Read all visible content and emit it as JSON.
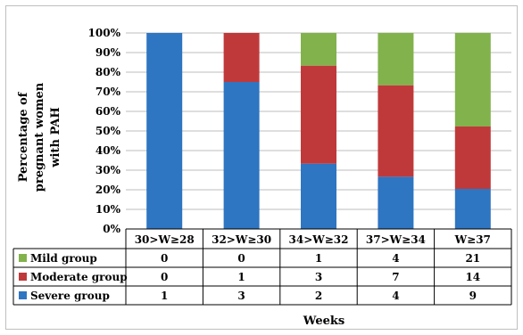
{
  "chart_data": {
    "type": "stacked-bar-100",
    "title": "",
    "ylabel": "Percentage of pregnant women with PAH",
    "xlabel": "Weeks",
    "ylim": [
      0,
      100
    ],
    "yticks": [
      "0%",
      "10%",
      "20%",
      "30%",
      "40%",
      "50%",
      "60%",
      "70%",
      "80%",
      "90%",
      "100%"
    ],
    "categories": [
      "30>W≥28",
      "32>W≥30",
      "34>W≥32",
      "37>W≥34",
      "W≥37"
    ],
    "series": [
      {
        "name": "Severe group",
        "color": "#2e75c2",
        "values": [
          1,
          3,
          2,
          4,
          9
        ]
      },
      {
        "name": "Moderate group",
        "color": "#c0393a",
        "values": [
          0,
          1,
          3,
          7,
          14
        ]
      },
      {
        "name": "Mild group",
        "color": "#82b24c",
        "values": [
          0,
          0,
          1,
          4,
          21
        ]
      }
    ],
    "table_row_order": [
      "Mild group",
      "Moderate group",
      "Severe group"
    ],
    "grid": true,
    "legend": "data-table"
  }
}
